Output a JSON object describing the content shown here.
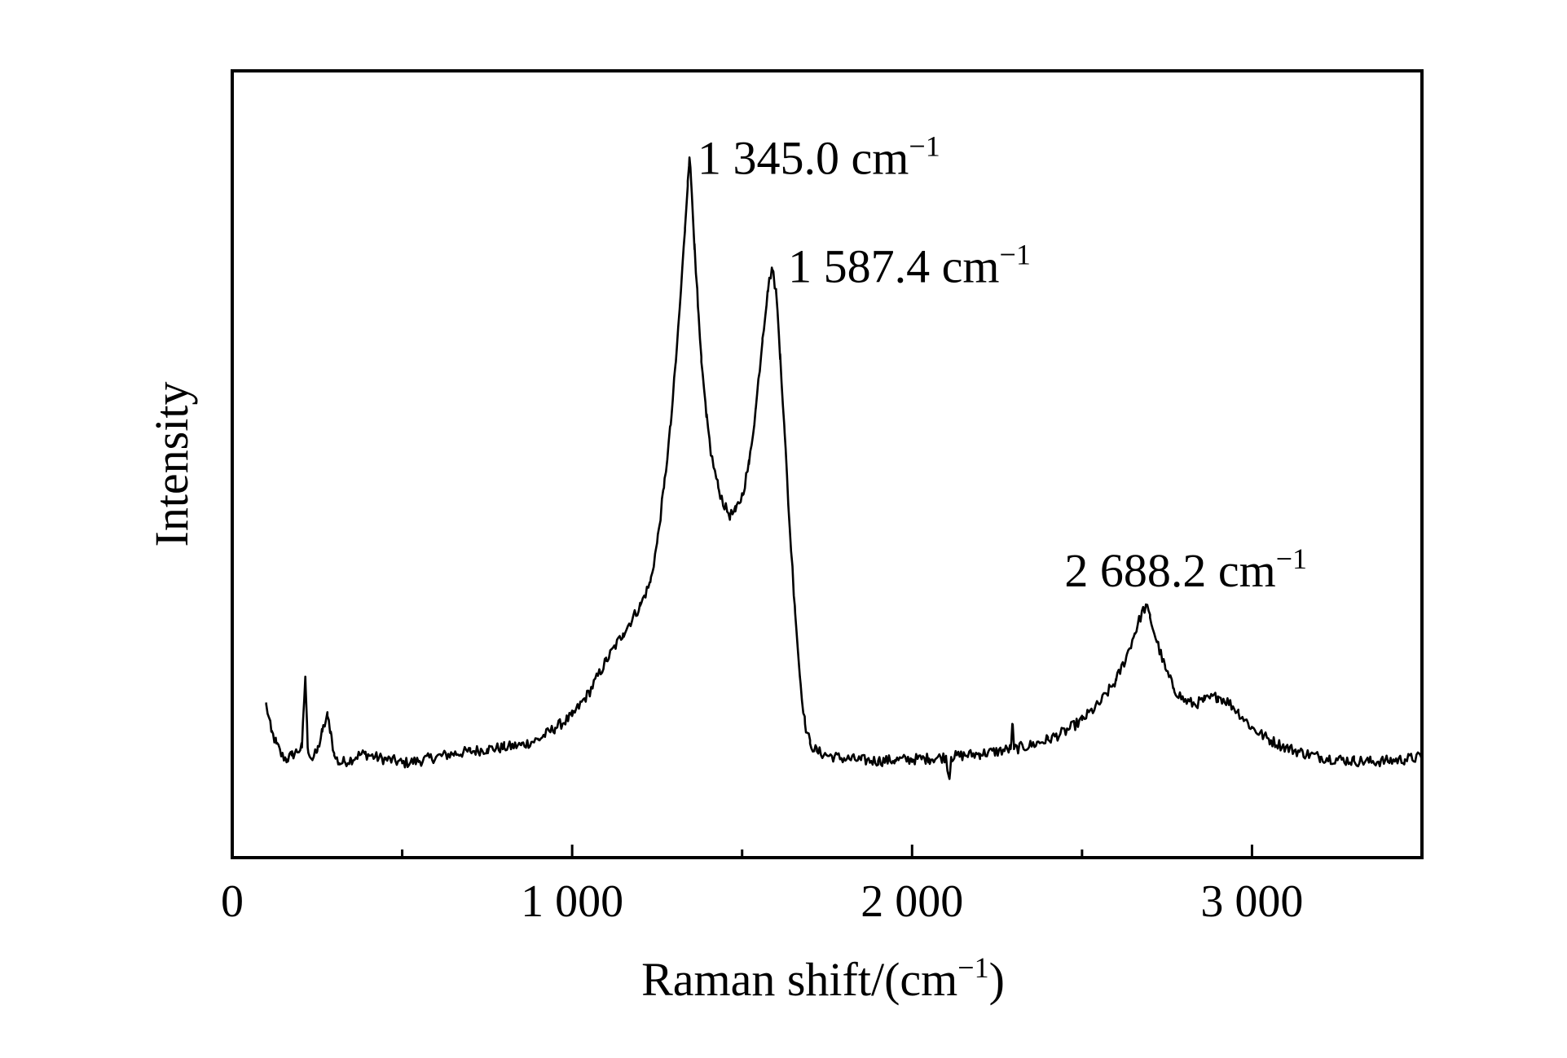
{
  "chart_data": {
    "type": "line",
    "title": "",
    "xlabel": "Raman shift/(cm",
    "xlabel_sup": "−1",
    "xlabel_close": ")",
    "ylabel": "Intensity",
    "xlim": [
      0,
      3500
    ],
    "ylim": [
      0,
      100
    ],
    "grid": false,
    "legend": "none",
    "x_ticks": [
      {
        "value": 0,
        "label": "0"
      },
      {
        "value": 1000,
        "label": "1 000"
      },
      {
        "value": 2000,
        "label": "2 000"
      },
      {
        "value": 3000,
        "label": "3 000"
      }
    ],
    "x_minor_ticks": [
      500,
      1500,
      2500
    ],
    "line_color": "#000000",
    "annotations": [
      {
        "x": 1345.0,
        "y": 89,
        "text": "1 345.0 cm",
        "sup": "−1"
      },
      {
        "x": 1587.4,
        "y": 75,
        "text": "1 587.4 cm",
        "sup": "−1"
      },
      {
        "x": 2688.2,
        "y": 32,
        "text": "2 688.2 cm",
        "sup": "−1"
      }
    ],
    "series": [
      {
        "color": "#000000",
        "points": [
          [
            100,
            19.5
          ],
          [
            115,
            16
          ],
          [
            130,
            14.5
          ],
          [
            145,
            13
          ],
          [
            160,
            12.5
          ],
          [
            175,
            13
          ],
          [
            190,
            13.5
          ],
          [
            205,
            14
          ],
          [
            215,
            23
          ],
          [
            222,
            14
          ],
          [
            235,
            12.5
          ],
          [
            250,
            13.5
          ],
          [
            265,
            16
          ],
          [
            280,
            18
          ],
          [
            290,
            16
          ],
          [
            300,
            13
          ],
          [
            315,
            12
          ],
          [
            330,
            12.2
          ],
          [
            350,
            12.5
          ],
          [
            370,
            13
          ],
          [
            390,
            13.2
          ],
          [
            420,
            12.8
          ],
          [
            450,
            12.5
          ],
          [
            480,
            12.3
          ],
          [
            500,
            12
          ],
          [
            550,
            12.3
          ],
          [
            600,
            12.8
          ],
          [
            650,
            13.2
          ],
          [
            700,
            13.5
          ],
          [
            750,
            13.8
          ],
          [
            800,
            14
          ],
          [
            850,
            14.3
          ],
          [
            900,
            15
          ],
          [
            950,
            16.5
          ],
          [
            1000,
            18
          ],
          [
            1050,
            21
          ],
          [
            1100,
            25
          ],
          [
            1150,
            28.5
          ],
          [
            1200,
            32
          ],
          [
            1230,
            35
          ],
          [
            1250,
            40
          ],
          [
            1270,
            47
          ],
          [
            1290,
            55
          ],
          [
            1305,
            63
          ],
          [
            1320,
            72
          ],
          [
            1332,
            80
          ],
          [
            1340,
            86
          ],
          [
            1345,
            89
          ],
          [
            1350,
            86
          ],
          [
            1360,
            78
          ],
          [
            1370,
            70
          ],
          [
            1380,
            63
          ],
          [
            1395,
            56
          ],
          [
            1410,
            51
          ],
          [
            1430,
            47
          ],
          [
            1450,
            44.5
          ],
          [
            1465,
            43.5
          ],
          [
            1480,
            44
          ],
          [
            1500,
            46
          ],
          [
            1520,
            50
          ],
          [
            1540,
            57
          ],
          [
            1560,
            66
          ],
          [
            1575,
            72
          ],
          [
            1587.4,
            75
          ],
          [
            1600,
            72
          ],
          [
            1612,
            64
          ],
          [
            1625,
            54
          ],
          [
            1640,
            42
          ],
          [
            1655,
            32
          ],
          [
            1670,
            23
          ],
          [
            1685,
            17
          ],
          [
            1700,
            14.5
          ],
          [
            1720,
            13.5
          ],
          [
            1750,
            13
          ],
          [
            1800,
            12.6
          ],
          [
            1850,
            12.4
          ],
          [
            1900,
            12.3
          ],
          [
            1950,
            12.4
          ],
          [
            2000,
            12.5
          ],
          [
            2050,
            12.6
          ],
          [
            2100,
            12.8
          ],
          [
            2110,
            10
          ],
          [
            2115,
            12.8
          ],
          [
            2150,
            13
          ],
          [
            2200,
            13.2
          ],
          [
            2250,
            13.5
          ],
          [
            2290,
            13.8
          ],
          [
            2295,
            17
          ],
          [
            2300,
            13.8
          ],
          [
            2350,
            14.3
          ],
          [
            2400,
            15
          ],
          [
            2450,
            16
          ],
          [
            2500,
            17.5
          ],
          [
            2550,
            19.5
          ],
          [
            2600,
            22.5
          ],
          [
            2630,
            25.5
          ],
          [
            2655,
            28.5
          ],
          [
            2675,
            31
          ],
          [
            2688.2,
            32
          ],
          [
            2700,
            30.5
          ],
          [
            2720,
            27.5
          ],
          [
            2745,
            24
          ],
          [
            2770,
            21.5
          ],
          [
            2800,
            20
          ],
          [
            2830,
            19.5
          ],
          [
            2860,
            20
          ],
          [
            2900,
            20.5
          ],
          [
            2930,
            19.8
          ],
          [
            2960,
            18.5
          ],
          [
            3000,
            16.5
          ],
          [
            3050,
            15
          ],
          [
            3100,
            14
          ],
          [
            3150,
            13.3
          ],
          [
            3200,
            12.8
          ],
          [
            3250,
            12.5
          ],
          [
            3300,
            12.3
          ],
          [
            3350,
            12.2
          ],
          [
            3400,
            12.3
          ],
          [
            3450,
            12.5
          ],
          [
            3500,
            12.8
          ]
        ]
      }
    ]
  }
}
